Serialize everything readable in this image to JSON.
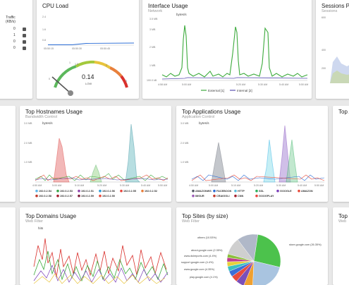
{
  "traffic_card": {
    "header": "Traffic (KB/s)",
    "rows": [
      "0",
      "1",
      "0",
      "0"
    ]
  },
  "cpu": {
    "title": "CPU Load",
    "yticks": [
      "2.4",
      "1.6",
      "0.8"
    ],
    "xticks": [
      "05:50:15",
      "05:50:30",
      "05:50:45"
    ],
    "gauge_value": "0.14",
    "gauge_unit": "LOW",
    "gauge_ticks": [
      "0",
      "1",
      "1.5",
      "2",
      "3"
    ]
  },
  "interface": {
    "title": "Interface Usage",
    "subtitle": "Network",
    "unit": "bytes/s",
    "yticks": [
      "3.5 MB",
      "3 MB",
      "2 MB",
      "1 MB",
      "100.0 kB"
    ],
    "xticks": [
      "4:58 AM",
      "5:00 AM",
      "5:20 AM",
      "5:30 AM",
      "5:40 AM",
      "5:50 AM"
    ],
    "legend": [
      "External [1]",
      "Internal [2]"
    ],
    "colors": [
      "#3caa3c",
      "#5a4fb0"
    ]
  },
  "sessions": {
    "title": "Sessions Pe",
    "subtitle": "Sessions",
    "yticks": [
      "600",
      "400",
      "200"
    ]
  },
  "hostnames": {
    "title": "Top Hostnames Usage",
    "subtitle": "Bandwidth Control",
    "unit": "bytes/s",
    "yticks": [
      "3.0 MB",
      "2.0 MB",
      "1.0 MB"
    ],
    "xticks": [
      "4:50 AM",
      "5:00 AM",
      "5:10 AM",
      "5:20 AM",
      "5:30 AM",
      "5:40 AM",
      "5:50 AM"
    ],
    "legend": [
      {
        "label": "192.0.2.54",
        "color": "#5fb6e8"
      },
      {
        "label": "192.0.2.53",
        "color": "#3ca54a"
      },
      {
        "label": "192.0.2.51",
        "color": "#8e44ad"
      },
      {
        "label": "192.0.2.56",
        "color": "#2c9bd6"
      },
      {
        "label": "192.0.2.55",
        "color": "#e8453c"
      },
      {
        "label": "192.0.2.52",
        "color": "#e87e3c"
      },
      {
        "label": "192.0.2.58",
        "color": "#c0392b"
      },
      {
        "label": "192.0.2.57",
        "color": "#a31c2c"
      },
      {
        "label": "192.0.2.59",
        "color": "#7b1e3c"
      },
      {
        "label": "192.0.2.50",
        "color": "#e74c3c"
      }
    ]
  },
  "applications": {
    "title": "Top Applications Usage",
    "subtitle": "Application Control",
    "unit": "bytes/s",
    "yticks": [
      "3.0 MB",
      "2.0 MB",
      "1.0 MB"
    ],
    "xticks": [
      "4:50 AM",
      "5:00 AM",
      "5:10 AM",
      "5:20 AM",
      "5:30 AM",
      "5:40 AM",
      "5:50 AM"
    ],
    "legend": [
      {
        "label": "AMAZONWS",
        "color": "#555a66"
      },
      {
        "label": "FACEBOOK",
        "color": "#2c6ed6"
      },
      {
        "label": "HTTP",
        "color": "#5bc0de"
      },
      {
        "label": "SSL",
        "color": "#2eaf5c"
      },
      {
        "label": "GOOGLE",
        "color": "#7a3fb8"
      },
      {
        "label": "AMAZON",
        "color": "#e74c3c"
      },
      {
        "label": "IMGUR",
        "color": "#9b59b6"
      },
      {
        "label": "CRAIGGLI",
        "color": "#c0392b"
      },
      {
        "label": "CNN",
        "color": "#a3202c"
      },
      {
        "label": "GOOGPLAY",
        "color": "#e8453c"
      }
    ]
  },
  "top_a": {
    "title": "Top A"
  },
  "domains": {
    "title": "Top Domains Usage",
    "subtitle": "Web Filter",
    "unit": "hits"
  },
  "sites": {
    "title": "Top Sites (by size)",
    "subtitle": "Web Filter",
    "slices": [
      {
        "label": "store.google.com (26.35%)",
        "value": 26.35,
        "color": "#4cc24c"
      },
      {
        "label": "",
        "value": 22.0,
        "color": "#a9c4e0"
      },
      {
        "label": "",
        "value": 5.5,
        "color": "#f0a030"
      },
      {
        "label": "",
        "value": 5.0,
        "color": "#7b4fb8"
      },
      {
        "label": "",
        "value": 4.0,
        "color": "#e84c3c"
      },
      {
        "label": "",
        "value": 3.5,
        "color": "#3c6fd6"
      },
      {
        "label": "",
        "value": 3.0,
        "color": "#3cc0c0"
      },
      {
        "label": "",
        "value": 2.8,
        "color": "#e8d03c"
      },
      {
        "label": "",
        "value": 2.5,
        "color": "#c03c8c"
      },
      {
        "label": "",
        "value": 2.2,
        "color": "#8cc03c"
      },
      {
        "label": "others (10.53%)",
        "value": 10.53,
        "color": "#cfcfcf"
      },
      {
        "label": "",
        "value": 12.62,
        "color": "#b0b8c8"
      }
    ],
    "left_labels": [
      "others (10.53%)",
      "about.google.com (2.35%)",
      "www.dslreports.com (4.4%)",
      "support.google.com (4.4%)",
      "www.google.com (4.35%)",
      "play.google.com (4.1%)"
    ],
    "right_label": "store.google.com (26.35%)"
  },
  "top_c": {
    "title": "Top C",
    "subtitle": "Web"
  }
}
